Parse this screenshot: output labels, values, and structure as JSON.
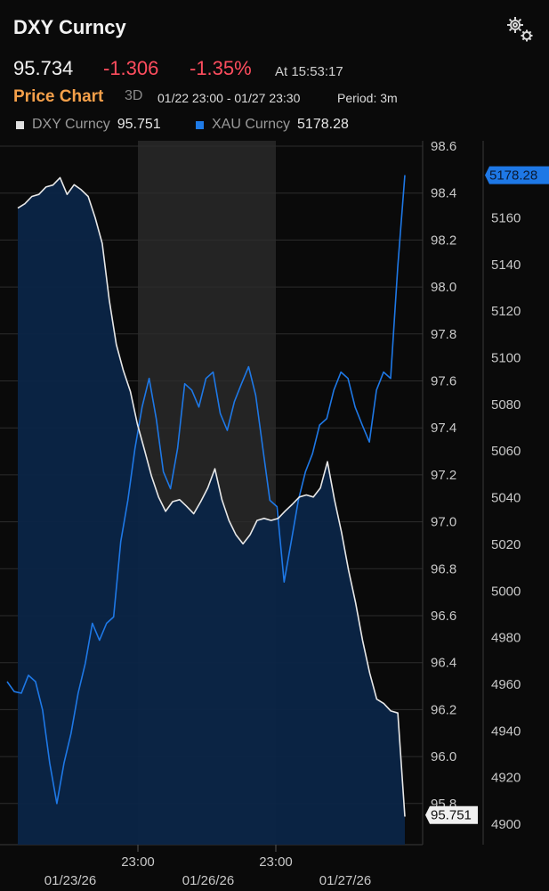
{
  "header": {
    "title": "DXY Curncy",
    "settings_icon": "gear-icon"
  },
  "quote": {
    "price": "95.734",
    "change": "-1.306",
    "change_pct": "-1.35%",
    "time": "At 15:53:17"
  },
  "subheader": {
    "title": "Price Chart",
    "period_button": "3D",
    "range": "01/22 23:00 - 01/27 23:30",
    "frequency": "Period: 3m"
  },
  "legend": [
    {
      "name": "DXY Curncy",
      "value": "95.751",
      "color": "#e0e0e0"
    },
    {
      "name": "XAU Curncy",
      "value": "5178.28",
      "color": "#1e7ae6"
    }
  ],
  "colors": {
    "dxy_line": "#e8e8e8",
    "xau_line": "#1e78e6",
    "fill": "#0b2547",
    "shade": "#242424",
    "negative": "#ff4d5e",
    "accent": "#f5a04a"
  },
  "chart_data": {
    "type": "line",
    "x_tick_labels": [
      "23:00",
      "23:00"
    ],
    "x_date_labels": [
      "01/23/26",
      "01/26/26",
      "01/27/26"
    ],
    "right_axis_labels": [
      "98.6",
      "98.4",
      "98.2",
      "98.0",
      "97.8",
      "97.6",
      "97.4",
      "97.2",
      "97.0",
      "96.8",
      "96.6",
      "96.4",
      "96.2",
      "96.0",
      "95.8"
    ],
    "far_right_axis_labels": [
      "5160",
      "5140",
      "5120",
      "5100",
      "5080",
      "5060",
      "5040",
      "5020",
      "5000",
      "4980",
      "4960",
      "4940",
      "4920",
      "4900"
    ],
    "ylim_dxy": [
      95.7,
      98.65
    ],
    "ylim_xau": [
      4896,
      5184
    ],
    "grid": true,
    "last_value_labels": {
      "dxy": "95.751",
      "xau": "5178.28"
    },
    "series": [
      {
        "name": "DXY Curncy",
        "axis": "right",
        "values": [
          98.33,
          98.36,
          98.38,
          98.4,
          98.42,
          98.44,
          98.46,
          98.4,
          98.43,
          98.42,
          98.38,
          98.3,
          98.18,
          97.95,
          97.75,
          97.65,
          97.55,
          97.42,
          97.3,
          97.2,
          97.1,
          97.05,
          97.08,
          97.1,
          97.06,
          97.04,
          97.08,
          97.15,
          97.22,
          97.1,
          97.0,
          96.95,
          96.9,
          96.95,
          97.0,
          97.02,
          97.0,
          97.02,
          97.04,
          97.08,
          97.1,
          97.12,
          97.1,
          97.15,
          97.25,
          97.1,
          96.95,
          96.8,
          96.65,
          96.5,
          96.35,
          96.25,
          96.22,
          96.2,
          96.18,
          95.75
        ]
      },
      {
        "name": "XAU Curncy",
        "axis": "far-right",
        "values": [
          4960,
          4958,
          4955,
          4965,
          4960,
          4950,
          4925,
          4910,
          4925,
          4940,
          4955,
          4970,
          4985,
          4980,
          4985,
          4990,
          5020,
          5040,
          5060,
          5080,
          5090,
          5075,
          5050,
          5045,
          5060,
          5090,
          5085,
          5080,
          5090,
          5095,
          5075,
          5070,
          5080,
          5090,
          5095,
          5085,
          5060,
          5040,
          5035,
          5005,
          5020,
          5040,
          5050,
          5060,
          5070,
          5075,
          5085,
          5095,
          5090,
          5080,
          5070,
          5065,
          5085,
          5095,
          5090,
          5140,
          5178.28
        ]
      }
    ]
  }
}
